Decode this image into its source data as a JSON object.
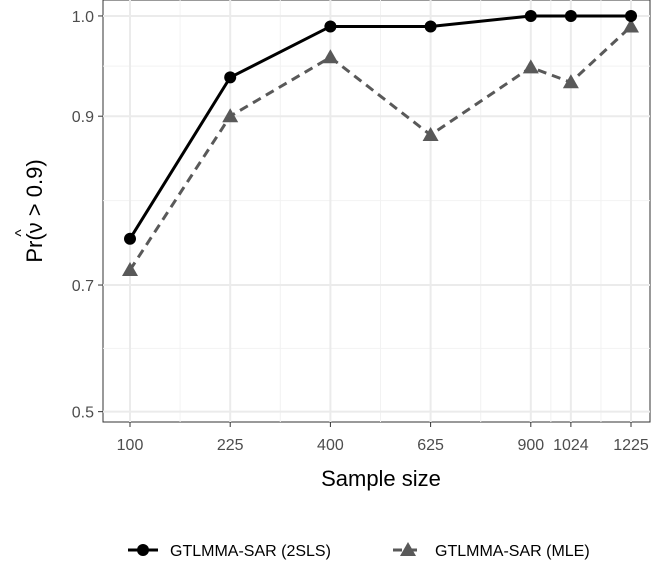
{
  "chart_data": {
    "type": "line",
    "x": [
      100,
      225,
      400,
      625,
      900,
      1024,
      1225
    ],
    "x_ticks": [
      "100",
      "225",
      "400",
      "625",
      "900",
      "1024",
      "1225"
    ],
    "x_scale": "sqrt",
    "xlabel": "Sample size",
    "ylabel_parts": {
      "prefix": "Pr(",
      "nu": "ν",
      "hat": "^",
      "suffix": " > 0.9)"
    },
    "y_ticks": [
      "0.5",
      "0.7",
      "0.9",
      "1.0"
    ],
    "y_tick_values": [
      0.5,
      0.7,
      0.9,
      1.0
    ],
    "y_scale": "squared",
    "ylim": [
      0.48,
      1.015
    ],
    "grid": true,
    "legend_position": "bottom",
    "series": [
      {
        "name": "GTLMMA-SAR (2SLS)",
        "values": [
          0.76,
          0.94,
          0.99,
          0.99,
          1.0,
          1.0,
          1.0
        ],
        "color": "#000000",
        "dash": "solid",
        "marker": "circle"
      },
      {
        "name": "GTLMMA-SAR (MLE)",
        "values": [
          0.72,
          0.9,
          0.96,
          0.88,
          0.95,
          0.935,
          0.99
        ],
        "color": "#595959",
        "dash": "dashed",
        "marker": "triangle"
      }
    ]
  }
}
